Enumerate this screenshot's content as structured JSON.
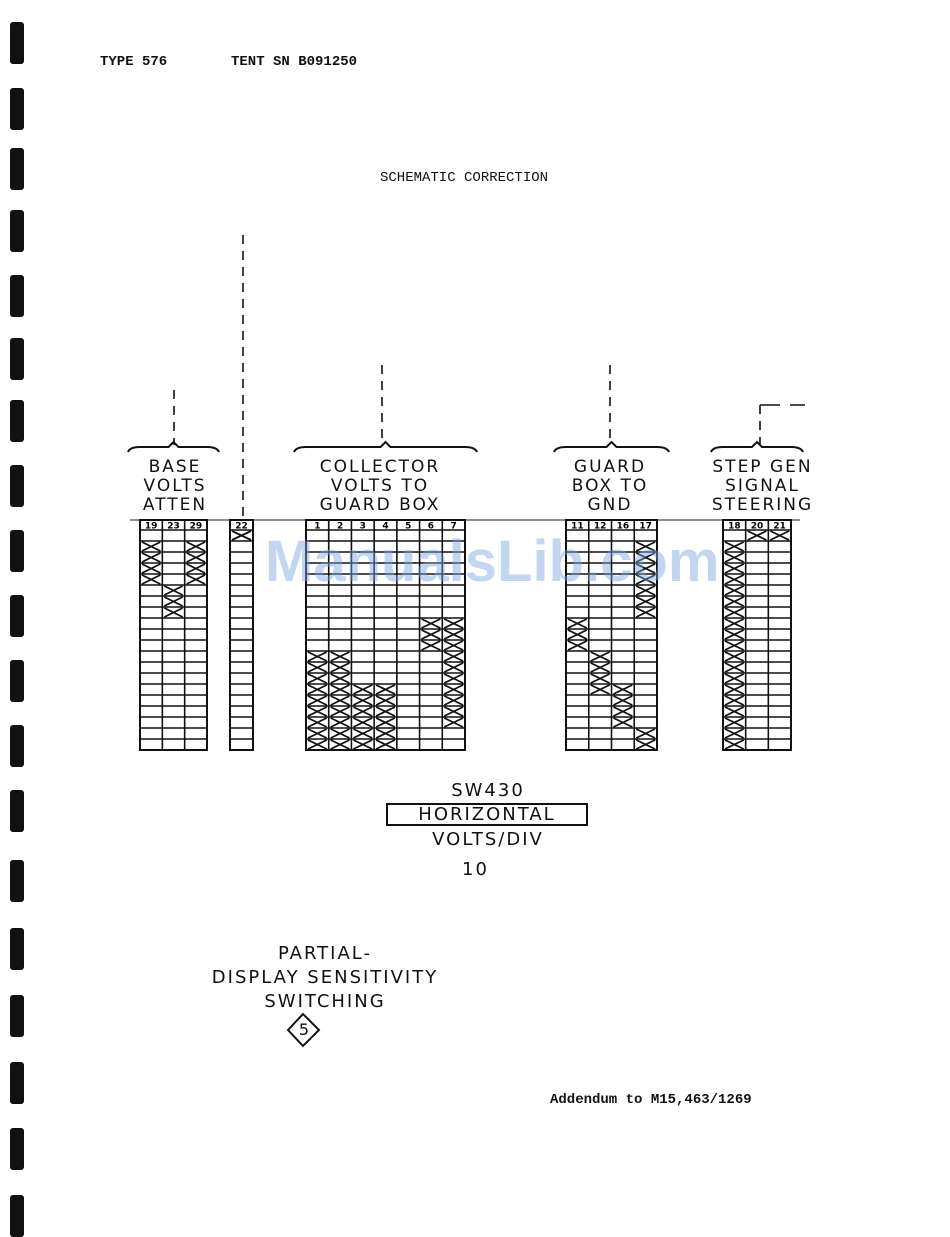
{
  "header": {
    "type": "TYPE 576",
    "serial": "TENT SN B091250"
  },
  "title": "SCHEMATIC CORRECTION",
  "watermark": "ManualsLib.com",
  "groups": [
    {
      "label": [
        "BASE",
        "VOLTS",
        "ATTEN"
      ],
      "columns": [
        "19",
        "23",
        "29"
      ],
      "x_rows": {
        "19": [
          [
            1,
            4
          ]
        ],
        "23": [
          [
            5,
            7
          ]
        ],
        "29": [
          [
            1,
            4
          ]
        ]
      }
    },
    {
      "label": [],
      "columns": [
        "22"
      ],
      "x_rows": {
        "22": [
          [
            0,
            0
          ]
        ]
      }
    },
    {
      "label": [
        "COLLECTOR",
        "VOLTS TO",
        "GUARD BOX"
      ],
      "columns": [
        "1",
        "2",
        "3",
        "4",
        "5",
        "6",
        "7"
      ],
      "x_rows": {
        "1": [
          [
            11,
            19
          ]
        ],
        "2": [
          [
            11,
            19
          ]
        ],
        "3": [
          [
            14,
            19
          ]
        ],
        "4": [
          [
            14,
            19
          ]
        ],
        "6": [
          [
            8,
            10
          ]
        ],
        "7": [
          [
            8,
            17
          ]
        ]
      }
    },
    {
      "label": [
        "GUARD",
        "BOX TO",
        "GND"
      ],
      "columns": [
        "11",
        "12",
        "16",
        "17"
      ],
      "x_rows": {
        "11": [
          [
            8,
            10
          ]
        ],
        "12": [
          [
            11,
            14
          ]
        ],
        "16": [
          [
            14,
            17
          ]
        ],
        "17": [
          [
            1,
            7
          ],
          [
            18,
            19
          ]
        ]
      }
    },
    {
      "label": [
        "STEP GEN",
        "SIGNAL",
        "STEERING"
      ],
      "columns": [
        "18",
        "20",
        "21"
      ],
      "x_rows": {
        "18": [
          [
            1,
            19
          ]
        ],
        "20": [
          [
            0,
            0
          ]
        ],
        "21": [
          [
            0,
            0
          ]
        ]
      }
    }
  ],
  "positions": 20,
  "switch": {
    "id": "SW430",
    "name": "HORIZONTAL",
    "sub": "VOLTS/DIV",
    "setting": "10"
  },
  "caption": [
    "PARTIAL-",
    "DISPLAY SENSITIVITY",
    "SWITCHING"
  ],
  "figure_number": "5",
  "addendum": "Addendum to M15,463/1269"
}
